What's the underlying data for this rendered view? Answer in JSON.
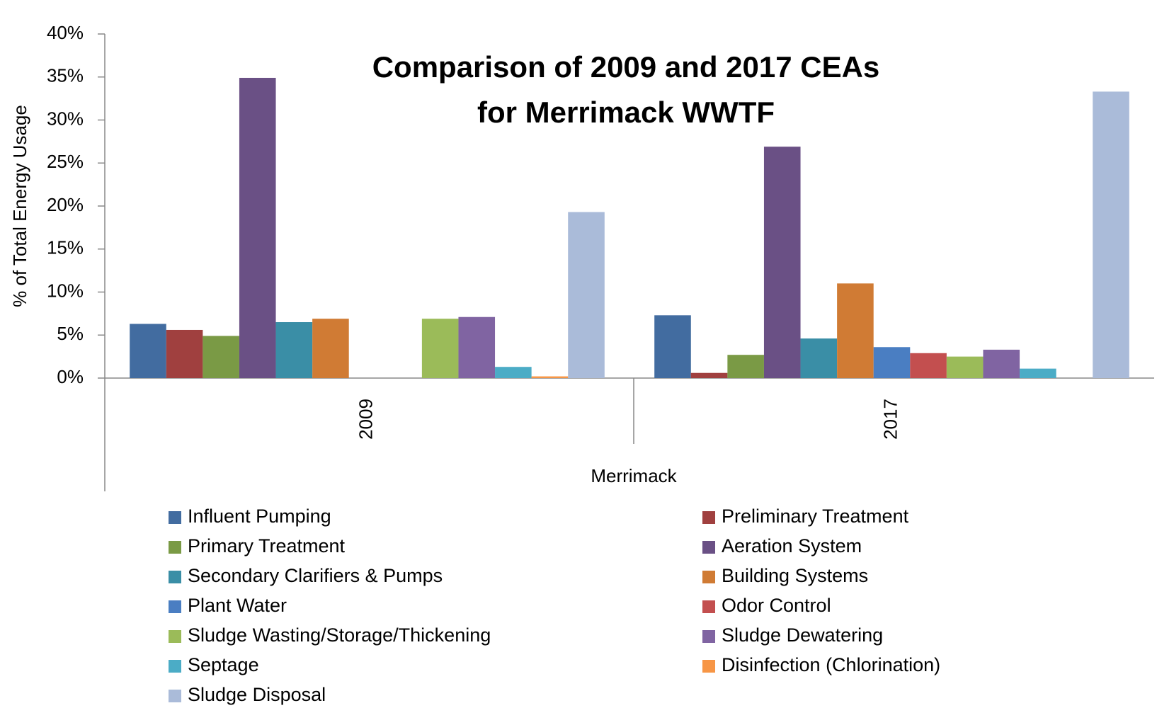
{
  "chart_data": {
    "type": "bar",
    "title_lines": [
      "Comparison of 2009 and 2017 CEAs",
      "for Merrimack WWTF"
    ],
    "y_label": "% of Total Energy Usage",
    "x_label": "Merrimack",
    "categories": [
      "2009",
      "2017"
    ],
    "ylim": [
      0,
      40
    ],
    "yticks": [
      {
        "value": 0,
        "label": "0%"
      },
      {
        "value": 5,
        "label": "5%"
      },
      {
        "value": 10,
        "label": "10%"
      },
      {
        "value": 15,
        "label": "15%"
      },
      {
        "value": 20,
        "label": "20%"
      },
      {
        "value": 25,
        "label": "25%"
      },
      {
        "value": 30,
        "label": "30%"
      },
      {
        "value": 35,
        "label": "35%"
      },
      {
        "value": 40,
        "label": "40%"
      }
    ],
    "grid": false,
    "legend": "bottom",
    "series": [
      {
        "name": "Influent Pumping",
        "color": "#426ca0",
        "values": [
          6.3,
          7.3
        ]
      },
      {
        "name": "Preliminary Treatment",
        "color": "#a0403f",
        "values": [
          5.6,
          0.6
        ]
      },
      {
        "name": "Primary Treatment",
        "color": "#7a9a45",
        "values": [
          4.9,
          2.7
        ]
      },
      {
        "name": "Aeration System",
        "color": "#6a5085",
        "values": [
          34.9,
          26.9
        ]
      },
      {
        "name": "Secondary Clarifiers & Pumps",
        "color": "#3a8ea6",
        "values": [
          6.5,
          4.6
        ]
      },
      {
        "name": "Building Systems",
        "color": "#d07b34",
        "values": [
          6.9,
          11.0
        ]
      },
      {
        "name": "Plant Water",
        "color": "#4a7ec2",
        "values": [
          0,
          3.6
        ]
      },
      {
        "name": "Odor Control",
        "color": "#c34f4f",
        "values": [
          0,
          2.9
        ]
      },
      {
        "name": "Sludge Wasting/Storage/Thickening",
        "color": "#9bbb59",
        "values": [
          6.9,
          2.5
        ]
      },
      {
        "name": "Sludge Dewatering",
        "color": "#8064a2",
        "values": [
          7.1,
          3.3
        ]
      },
      {
        "name": "Septage",
        "color": "#4bacc6",
        "values": [
          1.3,
          1.1
        ]
      },
      {
        "name": "Disinfection (Chlorination)",
        "color": "#f79646",
        "values": [
          0.2,
          0
        ]
      },
      {
        "name": "Sludge Disposal",
        "color": "#aabbd9",
        "values": [
          19.3,
          33.3
        ]
      }
    ]
  }
}
